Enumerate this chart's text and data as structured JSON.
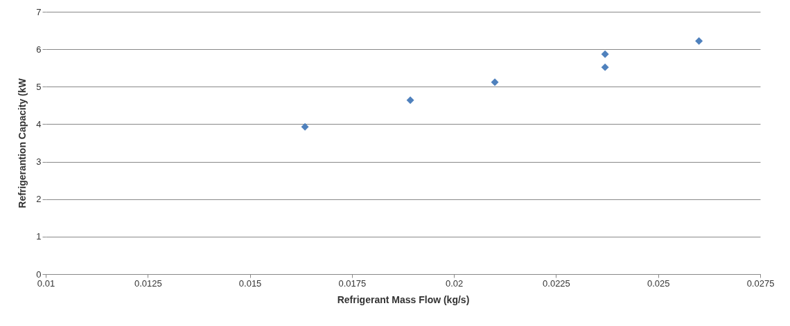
{
  "chart_data": {
    "type": "scatter",
    "xlabel": "Refrigerant Mass Flow (kg/s)",
    "ylabel": "Refrigerantion Capacity (kW",
    "x": [
      0.01635,
      0.01893,
      0.021,
      0.0237,
      0.0237,
      0.026
    ],
    "series": [
      {
        "color": "#4f81bd",
        "values": [
          3.93,
          4.64,
          5.12,
          5.87,
          5.52,
          6.22
        ]
      }
    ],
    "xlim": [
      0.01,
      0.0275
    ],
    "xticks": [
      0.01,
      0.0125,
      0.015,
      0.0175,
      0.02,
      0.0225,
      0.025,
      0.0275
    ],
    "ylim": [
      0,
      7
    ],
    "yticks": [
      0,
      1,
      2,
      3,
      4,
      5,
      6,
      7
    ],
    "grid": "y",
    "marker": "diamond"
  }
}
